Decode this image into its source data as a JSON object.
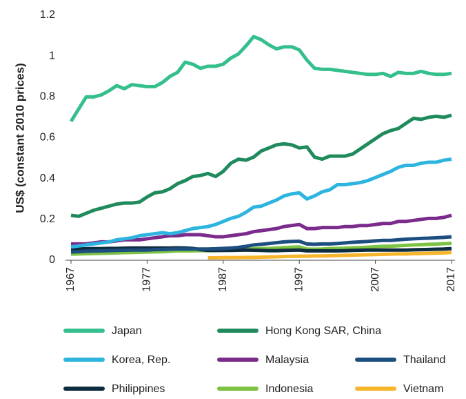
{
  "chart_data": {
    "type": "line",
    "y_label": "US$ (constant 2010 prices)",
    "x": [
      1967,
      1968,
      1969,
      1970,
      1971,
      1972,
      1973,
      1974,
      1975,
      1976,
      1977,
      1978,
      1979,
      1980,
      1981,
      1982,
      1983,
      1984,
      1985,
      1986,
      1987,
      1988,
      1989,
      1990,
      1991,
      1992,
      1993,
      1994,
      1995,
      1996,
      1997,
      1998,
      1999,
      2000,
      2001,
      2002,
      2003,
      2004,
      2005,
      2006,
      2007,
      2008,
      2009,
      2010,
      2011,
      2012,
      2013,
      2014,
      2015,
      2016,
      2017
    ],
    "xlim": [
      1967,
      2017
    ],
    "xticks": [
      1967,
      1977,
      1987,
      1997,
      2007,
      2017
    ],
    "ylim": [
      0,
      1.2
    ],
    "yticks": [
      0,
      0.2,
      0.4,
      0.6,
      0.8,
      1,
      1.2
    ],
    "grid": false,
    "series": [
      {
        "name": "Japan",
        "color": "#34bf8c",
        "values": [
          0.68,
          0.74,
          0.8,
          0.8,
          0.81,
          0.83,
          0.855,
          0.84,
          0.86,
          0.855,
          0.85,
          0.85,
          0.87,
          0.9,
          0.92,
          0.97,
          0.96,
          0.94,
          0.95,
          0.95,
          0.96,
          0.99,
          1.01,
          1.05,
          1.095,
          1.08,
          1.055,
          1.035,
          1.045,
          1.045,
          1.03,
          0.98,
          0.94,
          0.935,
          0.935,
          0.93,
          0.925,
          0.92,
          0.915,
          0.91,
          0.91,
          0.915,
          0.9,
          0.92,
          0.915,
          0.915,
          0.925,
          0.915,
          0.91,
          0.91,
          0.915
        ]
      },
      {
        "name": "Hong Kong SAR, China",
        "color": "#1f8a5b",
        "values": [
          0.22,
          0.215,
          0.23,
          0.245,
          0.255,
          0.265,
          0.275,
          0.28,
          0.28,
          0.285,
          0.31,
          0.33,
          0.335,
          0.35,
          0.375,
          0.39,
          0.41,
          0.415,
          0.425,
          0.41,
          0.435,
          0.475,
          0.495,
          0.49,
          0.505,
          0.535,
          0.55,
          0.565,
          0.57,
          0.565,
          0.55,
          0.555,
          0.505,
          0.495,
          0.51,
          0.51,
          0.51,
          0.52,
          0.545,
          0.57,
          0.595,
          0.62,
          0.635,
          0.645,
          0.67,
          0.695,
          0.69,
          0.7,
          0.705,
          0.7,
          0.71
        ]
      },
      {
        "name": "Korea, Rep.",
        "color": "#2db5df",
        "values": [
          0.065,
          0.07,
          0.075,
          0.08,
          0.085,
          0.09,
          0.1,
          0.105,
          0.11,
          0.12,
          0.125,
          0.13,
          0.135,
          0.13,
          0.135,
          0.145,
          0.155,
          0.16,
          0.165,
          0.175,
          0.19,
          0.205,
          0.215,
          0.235,
          0.26,
          0.265,
          0.28,
          0.295,
          0.315,
          0.325,
          0.33,
          0.3,
          0.315,
          0.335,
          0.345,
          0.37,
          0.37,
          0.375,
          0.38,
          0.39,
          0.405,
          0.42,
          0.435,
          0.455,
          0.465,
          0.465,
          0.475,
          0.48,
          0.48,
          0.49,
          0.495
        ]
      },
      {
        "name": "Malaysia",
        "color": "#7a2b8b",
        "values": [
          0.08,
          0.08,
          0.08,
          0.085,
          0.09,
          0.09,
          0.095,
          0.1,
          0.1,
          0.1,
          0.105,
          0.11,
          0.115,
          0.12,
          0.12,
          0.125,
          0.125,
          0.125,
          0.12,
          0.115,
          0.115,
          0.12,
          0.125,
          0.13,
          0.14,
          0.145,
          0.15,
          0.155,
          0.165,
          0.17,
          0.175,
          0.155,
          0.155,
          0.16,
          0.16,
          0.16,
          0.165,
          0.165,
          0.17,
          0.17,
          0.175,
          0.18,
          0.18,
          0.19,
          0.19,
          0.195,
          0.2,
          0.205,
          0.205,
          0.21,
          0.22
        ]
      },
      {
        "name": "Thailand",
        "color": "#1d4e80",
        "values": [
          0.04,
          0.042,
          0.044,
          0.045,
          0.046,
          0.047,
          0.048,
          0.049,
          0.05,
          0.05,
          0.05,
          0.052,
          0.053,
          0.054,
          0.055,
          0.055,
          0.055,
          0.055,
          0.055,
          0.056,
          0.058,
          0.06,
          0.063,
          0.068,
          0.075,
          0.078,
          0.082,
          0.086,
          0.09,
          0.092,
          0.093,
          0.08,
          0.078,
          0.08,
          0.08,
          0.082,
          0.085,
          0.088,
          0.09,
          0.092,
          0.095,
          0.097,
          0.097,
          0.1,
          0.103,
          0.105,
          0.107,
          0.108,
          0.11,
          0.112,
          0.115
        ]
      },
      {
        "name": "Philippines",
        "color": "#0e2c3f",
        "values": [
          0.055,
          0.055,
          0.056,
          0.057,
          0.057,
          0.058,
          0.058,
          0.059,
          0.06,
          0.06,
          0.06,
          0.06,
          0.06,
          0.06,
          0.061,
          0.06,
          0.058,
          0.052,
          0.048,
          0.048,
          0.048,
          0.048,
          0.049,
          0.05,
          0.049,
          0.048,
          0.047,
          0.047,
          0.048,
          0.049,
          0.05,
          0.046,
          0.046,
          0.046,
          0.046,
          0.046,
          0.047,
          0.048,
          0.049,
          0.05,
          0.05,
          0.05,
          0.05,
          0.05,
          0.05,
          0.051,
          0.052,
          0.053,
          0.054,
          0.055,
          0.057
        ]
      },
      {
        "name": "Indonesia",
        "color": "#7cc243",
        "values": [
          0.03,
          0.031,
          0.032,
          0.033,
          0.034,
          0.035,
          0.036,
          0.037,
          0.038,
          0.039,
          0.04,
          0.041,
          0.042,
          0.044,
          0.046,
          0.046,
          0.046,
          0.047,
          0.047,
          0.047,
          0.048,
          0.05,
          0.052,
          0.054,
          0.056,
          0.057,
          0.058,
          0.06,
          0.062,
          0.064,
          0.065,
          0.055,
          0.054,
          0.055,
          0.057,
          0.058,
          0.059,
          0.061,
          0.062,
          0.064,
          0.066,
          0.068,
          0.069,
          0.071,
          0.073,
          0.075,
          0.076,
          0.078,
          0.079,
          0.081,
          0.083
        ]
      },
      {
        "name": "Vietnam",
        "color": "#f6b52b",
        "values": [
          null,
          null,
          null,
          null,
          null,
          null,
          null,
          null,
          null,
          null,
          null,
          null,
          null,
          null,
          null,
          null,
          null,
          null,
          0.012,
          0.012,
          0.013,
          0.013,
          0.013,
          0.014,
          0.014,
          0.015,
          0.016,
          0.017,
          0.018,
          0.019,
          0.02,
          0.02,
          0.021,
          0.021,
          0.022,
          0.023,
          0.024,
          0.025,
          0.026,
          0.027,
          0.028,
          0.029,
          0.03,
          0.031,
          0.031,
          0.032,
          0.033,
          0.034,
          0.035,
          0.036,
          0.038
        ]
      }
    ]
  }
}
